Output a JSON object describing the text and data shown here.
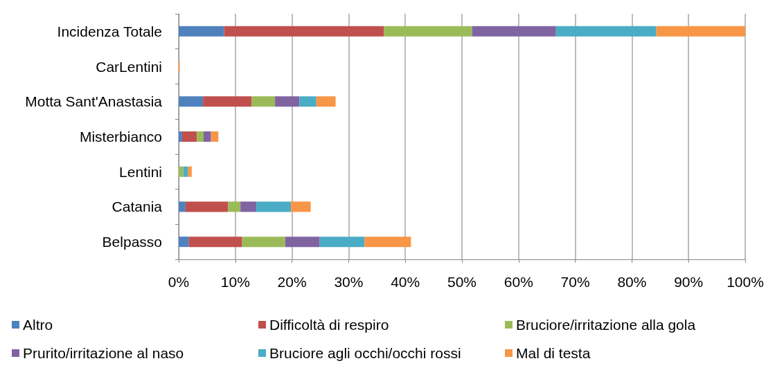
{
  "chart_data": {
    "type": "bar",
    "orientation": "horizontal",
    "stacked": true,
    "categories": [
      "Incidenza Totale",
      "CarLentini",
      "Motta Sant'Anastasia",
      "Misterbianco",
      "Lentini",
      "Catania",
      "Belpasso"
    ],
    "series": [
      {
        "name": "Altro",
        "color": "#4f81bd",
        "values": [
          8,
          0,
          4.3,
          0.6,
          0,
          1.2,
          1.8
        ]
      },
      {
        "name": "Difficoltà di respiro",
        "color": "#c0504d",
        "values": [
          28.2,
          0,
          8.6,
          2.6,
          0,
          7.5,
          9.4
        ]
      },
      {
        "name": "Bruciore/irritazione alla gola",
        "color": "#9bbb59",
        "values": [
          15.6,
          0,
          4.1,
          1.2,
          0.8,
          2.2,
          7.6
        ]
      },
      {
        "name": "Prurito/irritazione al naso",
        "color": "#8064a2",
        "values": [
          14.8,
          0,
          4.3,
          1.3,
          0,
          2.8,
          6.1
        ]
      },
      {
        "name": "Bruciore agli occhi/occhi rossi",
        "color": "#4bacc6",
        "values": [
          17.7,
          0,
          3,
          0,
          0.8,
          6.1,
          7.9
        ]
      },
      {
        "name": "Mal di testa",
        "color": "#f79646",
        "values": [
          15.7,
          0.2,
          3.4,
          1.3,
          0.7,
          3.5,
          8.2
        ]
      }
    ],
    "xlim": [
      0,
      100
    ],
    "xticks": [
      {
        "value": 0,
        "label": "0%"
      },
      {
        "value": 10,
        "label": "10%"
      },
      {
        "value": 20,
        "label": "20%"
      },
      {
        "value": 30,
        "label": "30%"
      },
      {
        "value": 40,
        "label": "40%"
      },
      {
        "value": 50,
        "label": "50%"
      },
      {
        "value": 60,
        "label": "60%"
      },
      {
        "value": 70,
        "label": "70%"
      },
      {
        "value": 80,
        "label": "80%"
      },
      {
        "value": 90,
        "label": "90%"
      },
      {
        "value": 100,
        "label": "100%"
      }
    ],
    "grid": "x",
    "legend": "bottom"
  }
}
